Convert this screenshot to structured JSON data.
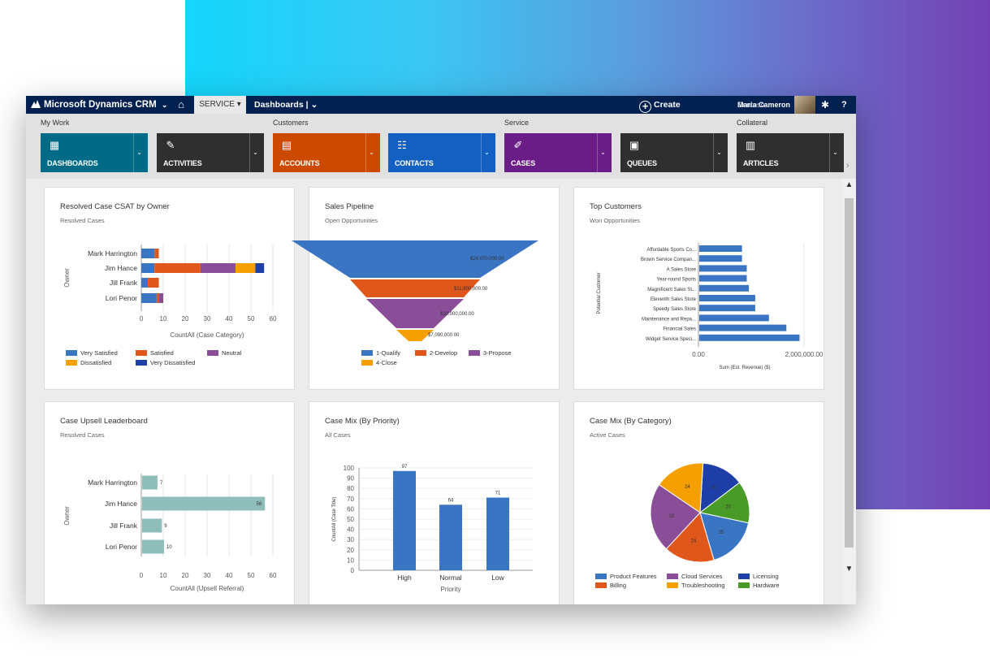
{
  "topbar": {
    "brand": "Microsoft Dynamics CRM",
    "brand_chevron": "⌄",
    "home_icon": "⌂",
    "service_tab": "SERVICE ▾",
    "dashboards_menu": "Dashboards | ⌄",
    "create_label": "Create",
    "create_icon": "+",
    "user_name": "Maria Cameron",
    "user_org": "Contoso",
    "settings_icon": "✱",
    "help_icon": "?"
  },
  "nav": {
    "groups": [
      "My Work",
      "Customers",
      "Service",
      "Collateral"
    ],
    "tiles": [
      {
        "label": "DASHBOARDS",
        "icon": "dashboards-icon",
        "glyph": "▦",
        "color": "#006b86"
      },
      {
        "label": "ACTIVITIES",
        "icon": "activities-icon",
        "glyph": "✎",
        "color": "#2f2f2f"
      },
      {
        "label": "ACCOUNTS",
        "icon": "accounts-icon",
        "glyph": "▤",
        "color": "#cc4a00"
      },
      {
        "label": "CONTACTS",
        "icon": "contacts-icon",
        "glyph": "☷",
        "color": "#1460c2"
      },
      {
        "label": "CASES",
        "icon": "cases-icon",
        "glyph": "✐",
        "color": "#6b1d87"
      },
      {
        "label": "QUEUES",
        "icon": "queues-icon",
        "glyph": "▣",
        "color": "#2f2f2f"
      },
      {
        "label": "ARTICLES",
        "icon": "articles-icon",
        "glyph": "▥",
        "color": "#2f2f2f"
      }
    ],
    "chevron": "⌄",
    "scroll_right": "›"
  },
  "scrollbar": {
    "up": "▲",
    "down": "▼"
  },
  "colors": {
    "very_satisfied": "#3a75c4",
    "satisfied": "#e0571c",
    "neutral": "#8a4e98",
    "dissatisfied": "#f5a000",
    "very_dissatisfied": "#1f3fa8",
    "qualify": "#3a75c4",
    "develop": "#e0571c",
    "propose": "#8a4e98",
    "close": "#f5a000",
    "bar_blue": "#3a75c4",
    "teal": "#8fbdb9",
    "product_features": "#3a75c4",
    "billing": "#e0571c",
    "cloud_services": "#8a4e98",
    "troubleshooting": "#f5a000",
    "licensing": "#1f3fa8",
    "hardware": "#4a9a28"
  },
  "chart_data": [
    {
      "type": "bar",
      "orientation": "horizontal-stacked",
      "title": "Resolved Case CSAT by Owner",
      "subtitle": "Resolved Cases",
      "xlabel": "CountAll (Case Category)",
      "ylabel": "Owner",
      "categories": [
        "Mark Harrington",
        "Jim Hance",
        "Jill Frank",
        "Lori Penor"
      ],
      "xlim": [
        0,
        60
      ],
      "xticks": [
        "0",
        "10",
        "20",
        "30",
        "40",
        "50",
        "60"
      ],
      "series": [
        {
          "name": "Very Satisfied",
          "values": [
            6,
            6,
            3,
            7
          ]
        },
        {
          "name": "Satisfied",
          "values": [
            2,
            21,
            5,
            1
          ]
        },
        {
          "name": "Neutral",
          "values": [
            0,
            16,
            0,
            2
          ]
        },
        {
          "name": "Dissatisfied",
          "values": [
            0,
            9,
            0,
            0
          ]
        },
        {
          "name": "Very Dissatisfied",
          "values": [
            0,
            4,
            0,
            0
          ]
        }
      ]
    },
    {
      "type": "funnel",
      "title": "Sales Pipeline",
      "subtitle": "Open Opportunities",
      "stages": [
        {
          "name": "1-Qualify",
          "label": "$24,070,000.00",
          "value": 24070000
        },
        {
          "name": "2-Develop",
          "label": "$11,800,000.00",
          "value": 11800000
        },
        {
          "name": "3-Propose",
          "label": "$10,000,000.00",
          "value": 10000000
        },
        {
          "name": "4-Close",
          "label": "$7,090,000.00",
          "value": 7090000
        }
      ]
    },
    {
      "type": "bar",
      "orientation": "horizontal",
      "title": "Top Customers",
      "subtitle": "Won Opportunities",
      "xlabel": "Sum (Est. Revenue) ($)",
      "ylabel": "Potential Customer",
      "categories": [
        "Affordable Sports Co...",
        "Brown Service Compan...",
        "A Sales Store",
        "Year-round Sports",
        "Magnificent Sales St...",
        "Eleventh Sales Store",
        "Speedy Sales Store",
        "Maintenance and Repa...",
        "Financial Sales",
        "Widget Service Speci..."
      ],
      "values": [
        810000,
        810000,
        900000,
        900000,
        940000,
        1060000,
        1060000,
        1320000,
        1650000,
        1900000
      ],
      "xlim": [
        0,
        2500000
      ],
      "xticks": [
        "0.00",
        "2,000,000.00"
      ]
    },
    {
      "type": "bar",
      "orientation": "horizontal",
      "title": "Case Upsell Leaderboard",
      "subtitle": "Resolved Cases",
      "xlabel": "CountAll (Upsell Referral)",
      "ylabel": "Owner",
      "categories": [
        "Mark Harrington",
        "Jim Hance",
        "Jill Frank",
        "Lori Penor"
      ],
      "values": [
        7,
        56,
        9,
        10
      ],
      "labels": [
        "7",
        "56",
        "9",
        "10"
      ],
      "xlim": [
        0,
        60
      ],
      "xticks": [
        "0",
        "10",
        "20",
        "30",
        "40",
        "50",
        "60"
      ]
    },
    {
      "type": "bar",
      "title": "Case Mix (By Priority)",
      "subtitle": "All Cases",
      "xlabel": "Priority",
      "ylabel": "CountAll (Case Title)",
      "categories": [
        "High",
        "Normal",
        "Low"
      ],
      "values": [
        97,
        64,
        71
      ],
      "labels": [
        "97",
        "64",
        "71"
      ],
      "ylim": [
        0,
        100
      ],
      "yticks": [
        "0",
        "10",
        "20",
        "30",
        "40",
        "50",
        "60",
        "70",
        "80",
        "90",
        "100"
      ]
    },
    {
      "type": "pie",
      "title": "Case Mix (By Category)",
      "subtitle": "Active Cases",
      "slices": [
        {
          "name": "Licensing",
          "value": 20,
          "label": "20"
        },
        {
          "name": "Hardware",
          "value": 20,
          "label": "20"
        },
        {
          "name": "Product Features",
          "value": 25,
          "label": "25"
        },
        {
          "name": "Billing",
          "value": 24,
          "label": "24"
        },
        {
          "name": "Cloud Services",
          "value": 33,
          "label": "33"
        },
        {
          "name": "Troubleshooting",
          "value": 24,
          "label": "24"
        }
      ],
      "legend": [
        "Product Features",
        "Cloud Services",
        "Licensing",
        "Billing",
        "Troubleshooting",
        "Hardware"
      ]
    }
  ]
}
